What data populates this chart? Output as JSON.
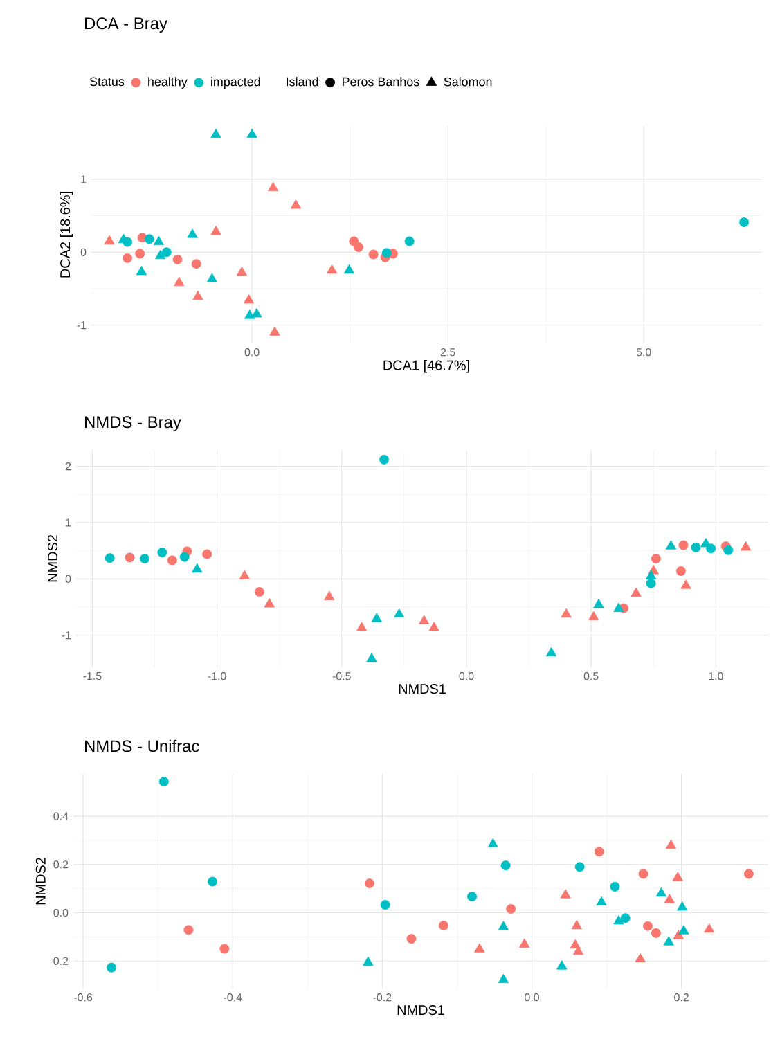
{
  "chart_data": [
    {
      "type": "scatter",
      "title": "DCA - Bray",
      "xlabel": "DCA1  [46.7%]",
      "ylabel": "DCA2  [18.6%]",
      "legend_title": "Status",
      "annotations": [
        "Island"
      ],
      "legend": "top",
      "grid": true,
      "xlim": [
        -2.05,
        6.5
      ],
      "ylim": [
        -1.25,
        1.73
      ],
      "xticks": [
        {
          "value": 0,
          "label": "0.0"
        },
        2.5,
        {
          "value": 5,
          "label": "5.0"
        }
      ],
      "yticks": [
        -1,
        0,
        1
      ],
      "series": [
        {
          "name": "healthy",
          "color": "#f8766d",
          "marker": "circle",
          "x": [
            -1.59,
            -1.43,
            -1.4,
            -0.95,
            -0.71,
            1.3,
            1.36,
            1.55,
            1.7,
            1.8
          ],
          "values": [
            -0.08,
            -0.02,
            0.2,
            -0.1,
            -0.16,
            0.15,
            0.07,
            -0.03,
            -0.07,
            -0.02
          ]
        },
        {
          "name": "impacted",
          "color": "#00bfc4",
          "marker": "circle",
          "x": [
            -1.59,
            -1.31,
            -1.09,
            1.72,
            2.01,
            6.28
          ],
          "values": [
            0.14,
            0.18,
            0,
            -0.01,
            0.15,
            0.41
          ]
        },
        {
          "color": "#f8766d",
          "marker": "triangle",
          "x": [
            -1.82,
            -0.46,
            0.27,
            0.56,
            -0.13,
            -0.93,
            -0.69,
            -0.04,
            0.29,
            1.02
          ],
          "values": [
            0.15,
            0.28,
            0.88,
            0.64,
            -0.28,
            -0.42,
            -0.61,
            -0.66,
            -1.1,
            -0.25
          ]
        },
        {
          "color": "#00bfc4",
          "marker": "triangle",
          "x": [
            -0.46,
            0,
            -1.64,
            -1.19,
            -0.76,
            -1.41,
            -1.17,
            -0.51,
            1.24,
            -0.03,
            0.06
          ],
          "values": [
            1.61,
            1.61,
            0.17,
            0.14,
            0.24,
            -0.27,
            -0.05,
            -0.37,
            -0.25,
            -0.87,
            -0.85
          ]
        },
        {
          "name": "Peros Banhos",
          "color": "#000000",
          "marker": "circle"
        },
        {
          "name": "Salomon",
          "color": "#000000",
          "marker": "triangle"
        }
      ]
    },
    {
      "type": "scatter",
      "title": "NMDS - Bray",
      "xlabel": "NMDS1",
      "ylabel": "NMDS2",
      "grid": true,
      "xlim": [
        -1.565,
        1.21
      ],
      "ylim": [
        -1.57,
        2.29
      ],
      "xticks": [
        -1.5,
        {
          "value": -1,
          "label": "-1.0"
        },
        -0.5,
        {
          "value": 0,
          "label": "0.0"
        },
        0.5,
        {
          "value": 1,
          "label": "1.0"
        }
      ],
      "yticks": [
        -1,
        0,
        1,
        2
      ],
      "series": [
        {
          "color": "#f8766d",
          "marker": "circle",
          "x": [
            -1.35,
            -1.18,
            -1.12,
            -1.04,
            -0.83,
            0.63,
            0.76,
            0.86,
            0.87,
            1.04
          ],
          "values": [
            0.38,
            0.33,
            0.49,
            0.44,
            -0.23,
            -0.52,
            0.36,
            0.14,
            0.6,
            0.58
          ]
        },
        {
          "color": "#00bfc4",
          "marker": "circle",
          "x": [
            -1.43,
            -1.29,
            -1.22,
            -1.13,
            -0.33,
            0.74,
            0.92,
            0.98,
            1.05
          ],
          "values": [
            0.37,
            0.36,
            0.47,
            0.39,
            2.12,
            -0.08,
            0.56,
            0.54,
            0.51
          ]
        },
        {
          "color": "#f8766d",
          "marker": "triangle",
          "x": [
            -0.89,
            -0.79,
            -0.55,
            -0.42,
            -0.17,
            -0.13,
            0.4,
            0.51,
            0.68,
            0.75,
            0.88,
            1.12
          ],
          "values": [
            0.05,
            -0.45,
            -0.32,
            -0.87,
            -0.75,
            -0.87,
            -0.63,
            -0.68,
            -0.26,
            0.14,
            -0.12,
            0.56
          ]
        },
        {
          "color": "#00bfc4",
          "marker": "triangle",
          "x": [
            -1.08,
            -0.36,
            -0.27,
            -0.38,
            0.34,
            0.53,
            0.61,
            0.74,
            0.82,
            0.96
          ],
          "values": [
            0.17,
            -0.71,
            -0.63,
            -1.42,
            -1.32,
            -0.46,
            -0.53,
            0.05,
            0.58,
            0.62
          ]
        }
      ]
    },
    {
      "type": "scatter",
      "title": "NMDS - Unifrac",
      "xlabel": "NMDS1",
      "ylabel": "NMDS2",
      "grid": true,
      "xlim": [
        -0.613,
        0.316
      ],
      "ylim": [
        -0.314,
        0.575
      ],
      "xticks": [
        -0.6,
        -0.4,
        -0.2,
        {
          "value": 0,
          "label": "0.0"
        },
        0.2
      ],
      "yticks": [
        -0.2,
        {
          "value": 0,
          "label": "0.0"
        },
        0.2,
        0.4
      ],
      "series": [
        {
          "color": "#f8766d",
          "marker": "circle",
          "x": [
            -0.459,
            -0.411,
            -0.217,
            -0.161,
            -0.118,
            -0.028,
            0.09,
            0.149,
            0.155,
            0.166,
            0.29
          ],
          "values": [
            -0.071,
            -0.149,
            0.122,
            -0.108,
            -0.053,
            0.016,
            0.253,
            0.161,
            -0.055,
            -0.084,
            0.161
          ]
        },
        {
          "color": "#00bfc4",
          "marker": "circle",
          "x": [
            -0.492,
            -0.427,
            -0.562,
            -0.196,
            -0.08,
            -0.035,
            0.064,
            0.111,
            0.125
          ],
          "values": [
            0.543,
            0.129,
            -0.227,
            0.033,
            0.067,
            0.196,
            0.19,
            0.108,
            -0.022
          ]
        },
        {
          "color": "#f8766d",
          "marker": "triangle",
          "x": [
            -0.07,
            -0.01,
            0.045,
            0.06,
            0.058,
            0.062,
            0.145,
            0.184,
            0.186,
            0.196,
            0.195,
            0.237
          ],
          "values": [
            -0.151,
            -0.131,
            0.073,
            -0.055,
            -0.135,
            -0.161,
            -0.192,
            0.053,
            0.278,
            -0.096,
            0.145,
            -0.069
          ]
        },
        {
          "color": "#00bfc4",
          "marker": "triangle",
          "x": [
            -0.219,
            -0.052,
            -0.038,
            -0.038,
            0.04,
            0.093,
            0.116,
            0.173,
            0.183,
            0.201,
            0.203
          ],
          "values": [
            -0.206,
            0.284,
            -0.059,
            -0.278,
            -0.222,
            0.043,
            -0.035,
            0.08,
            -0.122,
            0.022,
            -0.076
          ]
        }
      ]
    }
  ]
}
